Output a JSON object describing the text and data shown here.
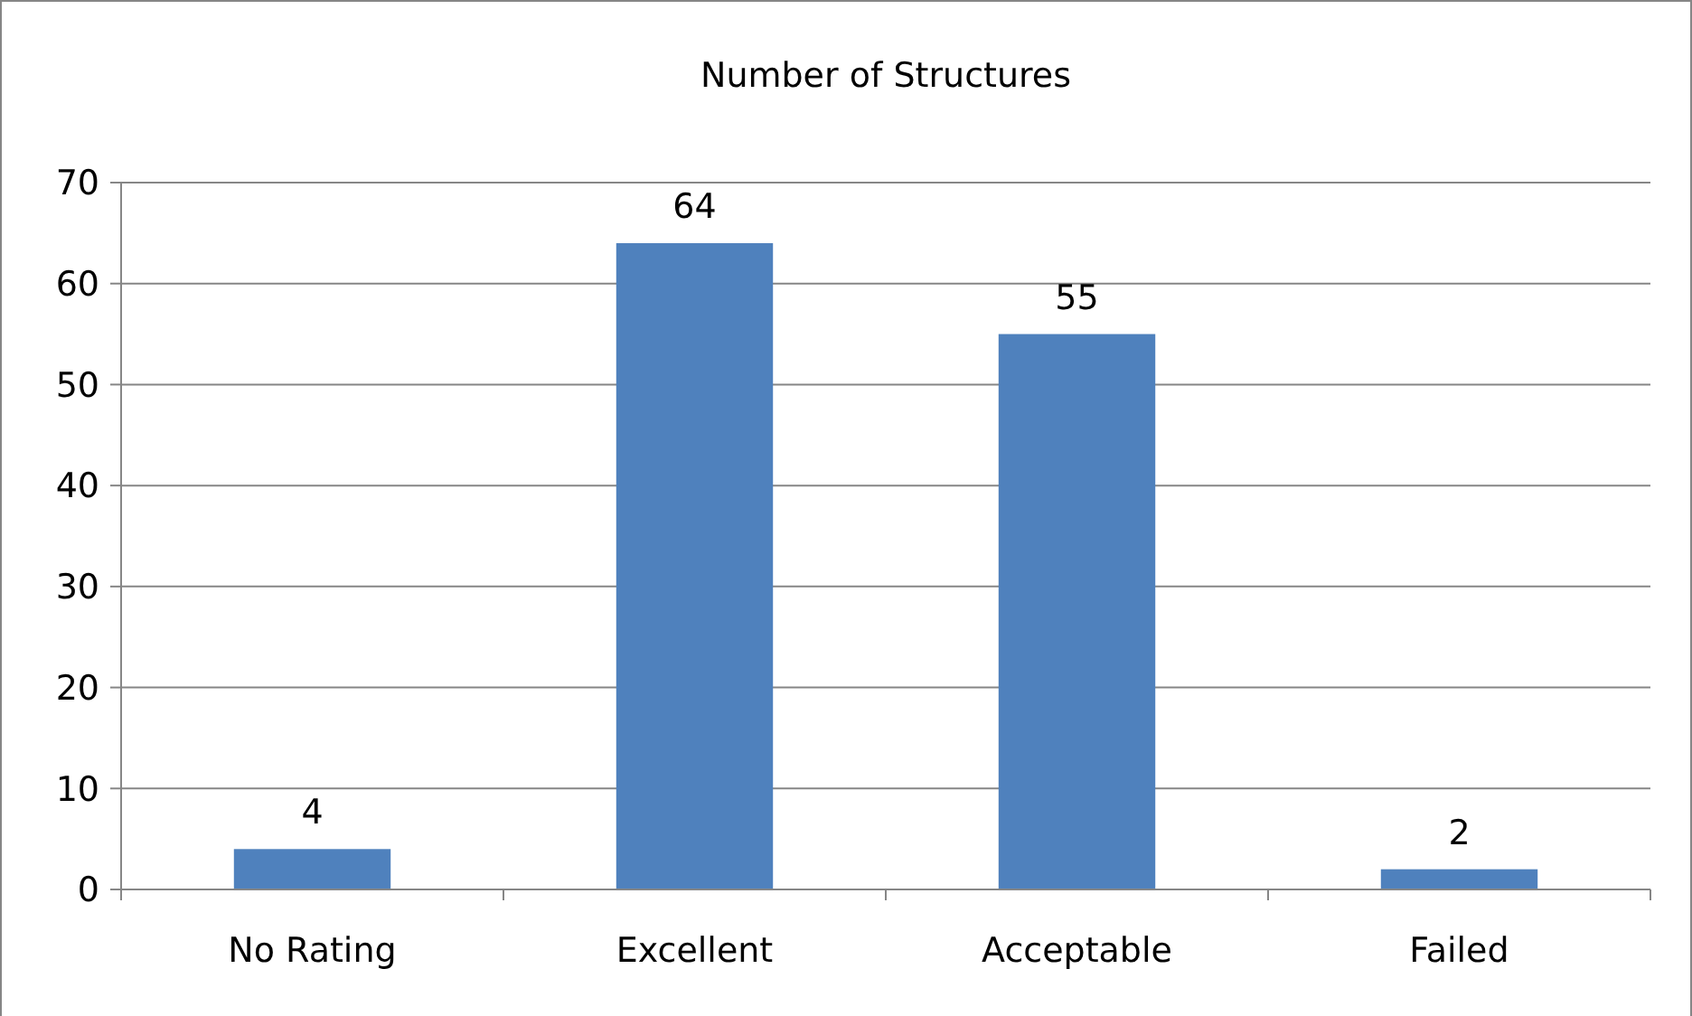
{
  "chart_data": {
    "type": "bar",
    "title": "Number of Structures",
    "categories": [
      "No Rating",
      "Excellent",
      "Acceptable",
      "Failed"
    ],
    "values": [
      4,
      64,
      55,
      2
    ],
    "color": "#4f81bd",
    "ylim": [
      0,
      70
    ],
    "yticks": [
      0,
      10,
      20,
      30,
      40,
      50,
      60,
      70
    ],
    "grid": "y",
    "data_labels": true
  }
}
